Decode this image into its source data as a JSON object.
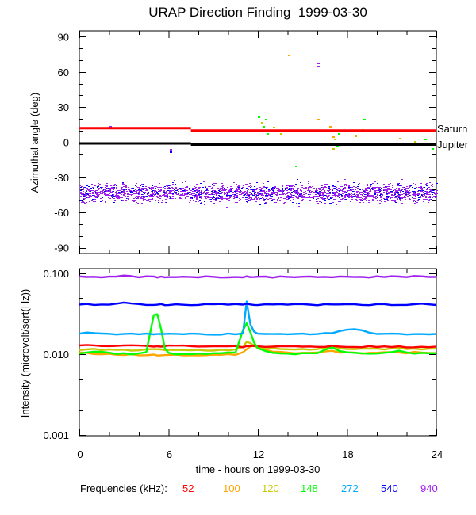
{
  "chart_data": [
    {
      "type": "scatter",
      "title": "URAP Direction Finding  1999-03-30",
      "xlabel": "",
      "ylabel": "Azimuthal angle (deg)",
      "xlim": [
        0,
        24
      ],
      "ylim": [
        -95,
        95
      ],
      "yticks": [
        90,
        60,
        30,
        0,
        -30,
        -60,
        -90
      ],
      "ytick_labels": [
        "90",
        "60",
        "30",
        "0",
        "-30",
        "-60",
        "-90"
      ],
      "grid": false,
      "reference_lines": [
        {
          "name": "Saturn",
          "color": "#ff0000",
          "segments": [
            [
              0,
              7.5,
              12
            ],
            [
              7.5,
              24,
              10
            ]
          ]
        },
        {
          "name": "Jupiter",
          "color": "#000000",
          "segments": [
            [
              0,
              7.5,
              -1
            ],
            [
              7.5,
              24,
              -2
            ]
          ]
        }
      ],
      "scatter_band": {
        "description_series": [
          "940",
          "540"
        ],
        "center": -43,
        "spread": 7,
        "x_range": [
          0,
          24
        ]
      },
      "outliers": [
        {
          "x": 2.0,
          "y": 14,
          "freq": "940"
        },
        {
          "x": 6.1,
          "y": -6,
          "freq": "940"
        },
        {
          "x": 6.1,
          "y": -8,
          "freq": "540"
        },
        {
          "x": 14.0,
          "y": 75,
          "freq": "100"
        },
        {
          "x": 16.0,
          "y": 68,
          "freq": "940"
        },
        {
          "x": 16.0,
          "y": 65,
          "freq": "940"
        },
        {
          "x": 12.0,
          "y": 22,
          "freq": "148"
        },
        {
          "x": 12.5,
          "y": 20,
          "freq": "148"
        },
        {
          "x": 12.2,
          "y": 17,
          "freq": "120"
        },
        {
          "x": 12.3,
          "y": 14,
          "freq": "148"
        },
        {
          "x": 12.6,
          "y": 8,
          "freq": "148"
        },
        {
          "x": 13.0,
          "y": 13,
          "freq": "120"
        },
        {
          "x": 13.2,
          "y": 10,
          "freq": "148"
        },
        {
          "x": 13.5,
          "y": 8,
          "freq": "120"
        },
        {
          "x": 14.5,
          "y": -20,
          "freq": "148"
        },
        {
          "x": 16.0,
          "y": 20,
          "freq": "100"
        },
        {
          "x": 16.8,
          "y": 14,
          "freq": "100"
        },
        {
          "x": 16.9,
          "y": 10,
          "freq": "148"
        },
        {
          "x": 17.0,
          "y": 5,
          "freq": "100"
        },
        {
          "x": 17.1,
          "y": 3,
          "freq": "120"
        },
        {
          "x": 17.2,
          "y": 0,
          "freq": "148"
        },
        {
          "x": 17.3,
          "y": -3,
          "freq": "148"
        },
        {
          "x": 17.0,
          "y": -5,
          "freq": "120"
        },
        {
          "x": 17.4,
          "y": 8,
          "freq": "148"
        },
        {
          "x": 18.5,
          "y": 6,
          "freq": "100"
        },
        {
          "x": 19.0,
          "y": 11,
          "freq": "120"
        },
        {
          "x": 19.1,
          "y": 20,
          "freq": "148"
        },
        {
          "x": 21.5,
          "y": 4,
          "freq": "100"
        },
        {
          "x": 21.7,
          "y": -2,
          "freq": "148"
        },
        {
          "x": 22.5,
          "y": 1,
          "freq": "120"
        },
        {
          "x": 23.2,
          "y": 3,
          "freq": "148"
        },
        {
          "x": 23.7,
          "y": -5,
          "freq": "148"
        }
      ],
      "annotations": [
        "Saturn",
        "Jupiter"
      ]
    },
    {
      "type": "line",
      "title": "",
      "xlabel": "time - hours on 1999-03-30",
      "ylabel": "Intensity (microvolt/sqrt(Hz))",
      "xlim": [
        0,
        24
      ],
      "ylim": [
        0.001,
        0.1
      ],
      "yscale": "log",
      "xticks": [
        0,
        6,
        12,
        18,
        24
      ],
      "xtick_labels": [
        "0",
        "6",
        "12",
        "18",
        "24"
      ],
      "yticks": [
        0.1,
        0.01,
        0.001
      ],
      "ytick_labels": [
        "0.100",
        "0.010",
        "0.001"
      ],
      "grid": false,
      "legend_title": "Frequencies (kHz):",
      "legend_placement": "bottom",
      "x": [
        0,
        0.5,
        1,
        1.5,
        2,
        2.5,
        3,
        3.5,
        4,
        4.5,
        5,
        5.25,
        5.5,
        5.75,
        6,
        6.5,
        7,
        7.5,
        8,
        8.5,
        9,
        9.5,
        10,
        10.5,
        11,
        11.25,
        11.5,
        11.75,
        12,
        12.5,
        13,
        13.5,
        14,
        14.5,
        15,
        15.5,
        16,
        16.5,
        17,
        17.5,
        18,
        18.5,
        19,
        19.5,
        20,
        20.5,
        21,
        21.5,
        22,
        22.5,
        23,
        23.5,
        24
      ],
      "series": [
        {
          "name": "52",
          "color": "#ff0000",
          "values": [
            0.0128,
            0.0128,
            0.0128,
            0.0128,
            0.0127,
            0.0127,
            0.0127,
            0.0127,
            0.0127,
            0.0126,
            0.0126,
            0.0126,
            0.0126,
            0.0126,
            0.0126,
            0.0126,
            0.0126,
            0.0126,
            0.0126,
            0.0126,
            0.0126,
            0.0126,
            0.0126,
            0.0126,
            0.0124,
            0.0124,
            0.0126,
            0.0126,
            0.0125,
            0.0124,
            0.0124,
            0.0124,
            0.0124,
            0.0124,
            0.0124,
            0.0124,
            0.0124,
            0.0124,
            0.0124,
            0.0124,
            0.0124,
            0.0124,
            0.0124,
            0.0124,
            0.0123,
            0.0123,
            0.0123,
            0.0123,
            0.0123,
            0.0123,
            0.0123,
            0.0123,
            0.0123
          ]
        },
        {
          "name": "100",
          "color": "#ffa500",
          "values": [
            0.0105,
            0.0103,
            0.0102,
            0.0101,
            0.0101,
            0.01,
            0.0099,
            0.0099,
            0.0098,
            0.0098,
            0.0098,
            0.0098,
            0.0098,
            0.0098,
            0.0098,
            0.0098,
            0.0098,
            0.0098,
            0.0098,
            0.0098,
            0.0098,
            0.0098,
            0.0099,
            0.0099,
            0.0105,
            0.0115,
            0.0125,
            0.013,
            0.012,
            0.0112,
            0.0108,
            0.0106,
            0.0105,
            0.0104,
            0.0103,
            0.0103,
            0.0104,
            0.0108,
            0.011,
            0.0106,
            0.0104,
            0.0103,
            0.0103,
            0.0103,
            0.0104,
            0.0104,
            0.0105,
            0.0104,
            0.0104,
            0.0105,
            0.0104,
            0.0104,
            0.0105
          ]
        },
        {
          "name": "120",
          "color": "#c8c800",
          "values": [
            0.0112,
            0.0113,
            0.0115,
            0.0114,
            0.0113,
            0.0112,
            0.0112,
            0.0112,
            0.0112,
            0.0113,
            0.0114,
            0.0115,
            0.0114,
            0.0112,
            0.0111,
            0.0111,
            0.0111,
            0.0111,
            0.0111,
            0.0111,
            0.0111,
            0.0112,
            0.0113,
            0.0115,
            0.0125,
            0.014,
            0.0135,
            0.0125,
            0.0118,
            0.012,
            0.0118,
            0.0116,
            0.0115,
            0.0115,
            0.0115,
            0.0115,
            0.0116,
            0.0122,
            0.0125,
            0.0118,
            0.0115,
            0.0115,
            0.0116,
            0.0116,
            0.0116,
            0.0116,
            0.0117,
            0.012,
            0.0118,
            0.0116,
            0.0116,
            0.0116,
            0.0117
          ]
        },
        {
          "name": "148",
          "color": "#00ff00",
          "values": [
            0.0102,
            0.0104,
            0.0108,
            0.0106,
            0.0103,
            0.0102,
            0.0101,
            0.0101,
            0.0102,
            0.0108,
            0.03,
            0.031,
            0.02,
            0.012,
            0.0103,
            0.0101,
            0.01,
            0.01,
            0.0101,
            0.0101,
            0.0101,
            0.0101,
            0.0103,
            0.0105,
            0.02,
            0.024,
            0.019,
            0.014,
            0.012,
            0.0108,
            0.0104,
            0.0102,
            0.0102,
            0.0101,
            0.0102,
            0.0102,
            0.0103,
            0.0115,
            0.012,
            0.0108,
            0.0104,
            0.0103,
            0.0103,
            0.0102,
            0.0103,
            0.0103,
            0.0105,
            0.011,
            0.0104,
            0.0103,
            0.0102,
            0.0103,
            0.0103
          ]
        },
        {
          "name": "272",
          "color": "#00aaff",
          "values": [
            0.018,
            0.0185,
            0.0182,
            0.018,
            0.0179,
            0.0178,
            0.018,
            0.0178,
            0.0177,
            0.0177,
            0.0177,
            0.0177,
            0.0177,
            0.0177,
            0.0177,
            0.0177,
            0.0177,
            0.0177,
            0.0177,
            0.0177,
            0.0177,
            0.0177,
            0.0177,
            0.0177,
            0.0179,
            0.045,
            0.023,
            0.019,
            0.018,
            0.0178,
            0.0177,
            0.0177,
            0.0177,
            0.0177,
            0.0177,
            0.0177,
            0.0178,
            0.018,
            0.0182,
            0.019,
            0.02,
            0.0205,
            0.0195,
            0.0182,
            0.0178,
            0.0177,
            0.0177,
            0.0177,
            0.0177,
            0.0177,
            0.0177,
            0.0177,
            0.0178
          ]
        },
        {
          "name": "540",
          "color": "#0000ff",
          "values": [
            0.0412,
            0.0411,
            0.0411,
            0.0412,
            0.0415,
            0.0425,
            0.043,
            0.0418,
            0.0413,
            0.0412,
            0.0411,
            0.0411,
            0.0411,
            0.0411,
            0.0411,
            0.0411,
            0.0411,
            0.0411,
            0.0411,
            0.0411,
            0.0411,
            0.0411,
            0.0411,
            0.0411,
            0.0416,
            0.0413,
            0.0411,
            0.0411,
            0.0411,
            0.041,
            0.041,
            0.041,
            0.041,
            0.041,
            0.041,
            0.041,
            0.041,
            0.041,
            0.041,
            0.041,
            0.041,
            0.041,
            0.041,
            0.041,
            0.041,
            0.041,
            0.041,
            0.0412,
            0.0412,
            0.0414,
            0.0418,
            0.0413,
            0.0411
          ]
        },
        {
          "name": "940",
          "color": "#a020f0",
          "values": [
            0.0905,
            0.0905,
            0.0905,
            0.0908,
            0.0915,
            0.0922,
            0.093,
            0.0912,
            0.0905,
            0.0905,
            0.0904,
            0.0904,
            0.0904,
            0.0904,
            0.0904,
            0.0904,
            0.0904,
            0.0904,
            0.0904,
            0.0904,
            0.0904,
            0.0904,
            0.0904,
            0.0904,
            0.0904,
            0.0904,
            0.0903,
            0.09,
            0.0902,
            0.0902,
            0.0902,
            0.0902,
            0.0902,
            0.0902,
            0.0902,
            0.0902,
            0.0902,
            0.0902,
            0.0902,
            0.0902,
            0.0902,
            0.0902,
            0.0902,
            0.0902,
            0.0904,
            0.0904,
            0.0906,
            0.0908,
            0.0908,
            0.0915,
            0.092,
            0.091,
            0.0905
          ]
        }
      ]
    }
  ]
}
